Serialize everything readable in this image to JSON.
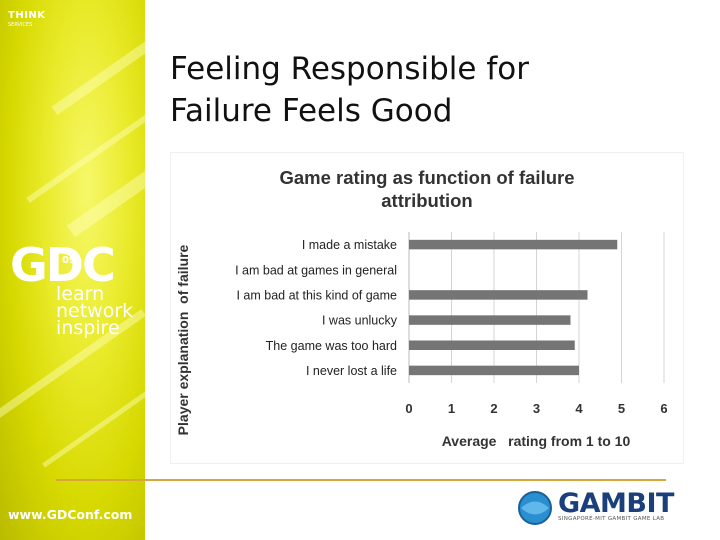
{
  "sidebar": {
    "think": "THINK",
    "think_sub": "SERVICES",
    "logo": "GDC",
    "year": "09",
    "tagline": [
      "learn",
      "network",
      "inspire"
    ],
    "url": "www.GDConf.com"
  },
  "slide": {
    "title_line1": "Feeling Responsible for",
    "title_line2": "Failure Feels Good"
  },
  "footer": {
    "logo_name": "GAMBIT",
    "logo_sub": "SINGAPORE-MIT GAMBIT GAME LAB",
    "divider_color": "#d8a63a"
  },
  "chart_data": {
    "type": "bar",
    "orientation": "horizontal",
    "title": "Game rating as function of failure attribution",
    "title_lines": [
      "Game rating as function of failure",
      "attribution"
    ],
    "xlabel": "Average   rating from 1 to 10",
    "ylabel": "Player explanation  of failure",
    "categories": [
      "I made a mistake",
      "I am bad at games in general",
      "I am bad at this kind of game",
      "I was unlucky",
      "The game was too hard",
      "I never lost a life"
    ],
    "values": [
      4.9,
      null,
      4.2,
      3.8,
      3.9,
      4.0
    ],
    "xlim": [
      0,
      6
    ],
    "xticks": [
      "0",
      "1",
      "2",
      "3",
      "4",
      "5",
      "6"
    ],
    "grid": true,
    "bar_color": "#757575"
  }
}
